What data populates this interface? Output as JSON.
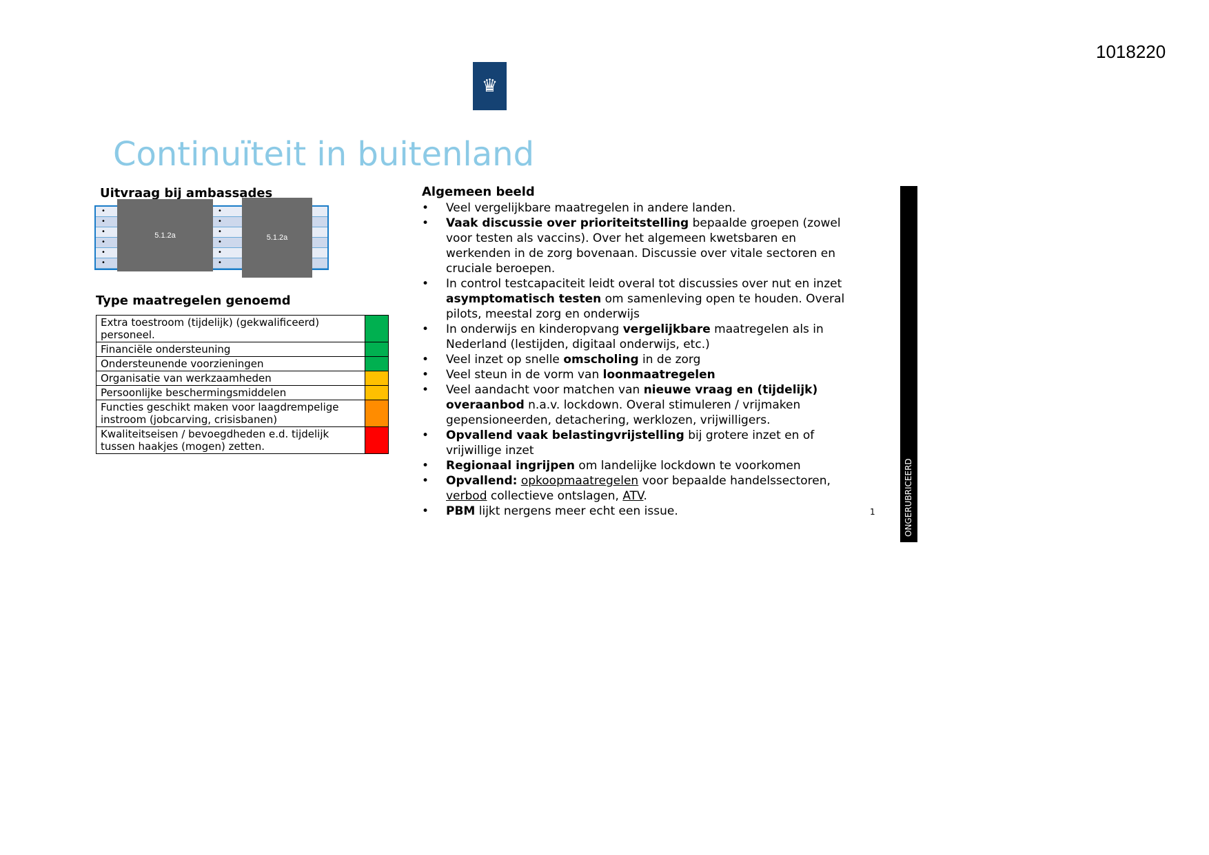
{
  "document_number": "1018220",
  "logo": {
    "icon": "coat-of-arms-icon",
    "color": "#154273"
  },
  "title": "Continuïteit in buitenland",
  "left": {
    "survey_heading": "Uitvraag bij ambassades",
    "redaction_label": "5.1.2a",
    "grid_bullet": "•",
    "measures_heading": "Type maatregelen genoemd",
    "measures": [
      {
        "label": "Extra toestroom (tijdelijk) (gekwalificeerd) personeel.",
        "color": "#00b050"
      },
      {
        "label": "Financiële ondersteuning",
        "color": "#00b050"
      },
      {
        "label": "Ondersteunende voorzieningen",
        "color": "#00b050"
      },
      {
        "label": "Organisatie van werkzaamheden",
        "color": "#ffc000"
      },
      {
        "label": "Persoonlijke beschermingsmiddelen",
        "color": "#ffc000"
      },
      {
        "label": "Functies geschikt maken voor laagdrempelige instroom (jobcarving, crisisbanen)",
        "color": "#ff8c00"
      },
      {
        "label": "Kwaliteitseisen / bevoegdheden e.d. tijdelijk tussen haakjes (mogen) zetten.",
        "color": "#ff0000"
      }
    ]
  },
  "right": {
    "heading": "Algemeen beeld",
    "bullets": [
      [
        {
          "t": "Veel vergelijkbare maatregelen in andere landen."
        }
      ],
      [
        {
          "t": "Vaak discussie over prioriteitstelling",
          "b": true
        },
        {
          "t": " bepaalde groepen (zowel voor testen als vaccins). Over het algemeen kwetsbaren en werkenden in de zorg bovenaan. Discussie over vitale sectoren en cruciale beroepen."
        }
      ],
      [
        {
          "t": "In control testcapaciteit leidt overal tot discussies over nut en inzet "
        },
        {
          "t": "asymptomatisch testen",
          "b": true
        },
        {
          "t": " om samenleving open te houden. Overal pilots, meestal zorg en onderwijs"
        }
      ],
      [
        {
          "t": "In onderwijs en kinderopvang "
        },
        {
          "t": "vergelijkbare",
          "b": true
        },
        {
          "t": " maatregelen als in Nederland (lestijden, digitaal onderwijs, etc.)"
        }
      ],
      [
        {
          "t": "Veel inzet op snelle "
        },
        {
          "t": "omscholing",
          "b": true
        },
        {
          "t": " in de zorg"
        }
      ],
      [
        {
          "t": "Veel steun in de vorm van "
        },
        {
          "t": "loonmaatregelen",
          "b": true
        }
      ],
      [
        {
          "t": "Veel aandacht voor matchen van "
        },
        {
          "t": "nieuwe vraag en (tijdelijk) overaanbod",
          "b": true
        },
        {
          "t": " n.a.v. lockdown. Overal stimuleren / vrijmaken gepensioneerden, detachering, werklozen, vrijwilligers."
        }
      ],
      [
        {
          "t": "Opvallend vaak belastingvrijstelling",
          "b": true
        },
        {
          "t": " bij grotere inzet en of vrijwillige inzet"
        }
      ],
      [
        {
          "t": "Regionaal ingrijpen",
          "b": true
        },
        {
          "t": " om landelijke lockdown te voorkomen"
        }
      ],
      [
        {
          "t": "Opvallend:",
          "b": true
        },
        {
          "t": " "
        },
        {
          "t": "opkoopmaatregelen",
          "u": true
        },
        {
          "t": " voor bepaalde handelssectoren, "
        },
        {
          "t": "verbod",
          "u": true
        },
        {
          "t": " collectieve ontslagen, "
        },
        {
          "t": "ATV",
          "u": true
        },
        {
          "t": "."
        }
      ],
      [
        {
          "t": "PBM",
          "b": true
        },
        {
          "t": " lijkt nergens meer echt een issue."
        }
      ]
    ]
  },
  "page_number": "1",
  "classification": "ONGERUBRICEERD"
}
